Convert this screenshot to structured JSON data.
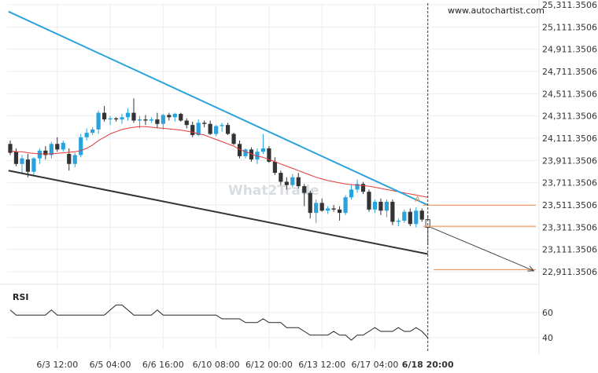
{
  "source_label": "www.autochartist.com",
  "watermark": "What2Trade",
  "chart_data": {
    "type": "candlestick",
    "title": "",
    "price_ticks": [
      "25,311.3506",
      "25,111.3506",
      "24,911.3506",
      "24,711.3506",
      "24,511.3506",
      "24,311.3506",
      "24,111.3506",
      "23,911.3506",
      "23,711.3506",
      "23,511.3506",
      "23,311.3506",
      "23,111.3506",
      "22,911.3506"
    ],
    "price_tick_values": [
      25311.3506,
      25111.3506,
      24911.3506,
      24711.3506,
      24511.3506,
      24311.3506,
      24111.3506,
      23911.3506,
      23711.3506,
      23511.3506,
      23311.3506,
      23111.3506,
      22911.3506
    ],
    "x_ticks": [
      "6/3 12:00",
      "6/5 04:00",
      "6/6 16:00",
      "6/10 08:00",
      "6/12 00:00",
      "6/13 12:00",
      "6/17 04:00",
      "6/18 20:00"
    ],
    "x_tick_positions": [
      8,
      17,
      26,
      35,
      44,
      53,
      62,
      71
    ],
    "candle_count": 72,
    "ohlc": [
      [
        24060,
        24090,
        23960,
        23980
      ],
      [
        23990,
        24020,
        23860,
        23880
      ],
      [
        23880,
        23960,
        23800,
        23930
      ],
      [
        23920,
        23970,
        23760,
        23810
      ],
      [
        23810,
        23940,
        23780,
        23930
      ],
      [
        23930,
        24020,
        23880,
        24000
      ],
      [
        24000,
        24040,
        23920,
        23960
      ],
      [
        23960,
        24080,
        23930,
        24060
      ],
      [
        24060,
        24120,
        23990,
        24010
      ],
      [
        24010,
        24090,
        23990,
        24070
      ],
      [
        23970,
        24020,
        23820,
        23880
      ],
      [
        23880,
        23980,
        23850,
        23960
      ],
      [
        23960,
        24150,
        23940,
        24120
      ],
      [
        24120,
        24200,
        24090,
        24160
      ],
      [
        24160,
        24210,
        24140,
        24190
      ],
      [
        24190,
        24360,
        24150,
        24340
      ],
      [
        24340,
        24400,
        24260,
        24280
      ],
      [
        24280,
        24310,
        24230,
        24290
      ],
      [
        24290,
        24300,
        24260,
        24280
      ],
      [
        24280,
        24330,
        24240,
        24300
      ],
      [
        24300,
        24380,
        24270,
        24340
      ],
      [
        24340,
        24470,
        24250,
        24270
      ],
      [
        24270,
        24310,
        24200,
        24280
      ],
      [
        24280,
        24320,
        24230,
        24270
      ],
      [
        24270,
        24300,
        24250,
        24280
      ],
      [
        24280,
        24340,
        24200,
        24240
      ],
      [
        24240,
        24330,
        24190,
        24320
      ],
      [
        24320,
        24340,
        24270,
        24300
      ],
      [
        24300,
        24340,
        24260,
        24330
      ],
      [
        24330,
        24340,
        24260,
        24270
      ],
      [
        24270,
        24290,
        24200,
        24230
      ],
      [
        24230,
        24260,
        24120,
        24140
      ],
      [
        24140,
        24280,
        24130,
        24250
      ],
      [
        24250,
        24270,
        24210,
        24240
      ],
      [
        24240,
        24270,
        24140,
        24150
      ],
      [
        24150,
        24230,
        24130,
        24220
      ],
      [
        24220,
        24250,
        24170,
        24230
      ],
      [
        24230,
        24250,
        24140,
        24150
      ],
      [
        24150,
        24160,
        24050,
        24060
      ],
      [
        24060,
        24090,
        23930,
        23950
      ],
      [
        23950,
        24020,
        23930,
        24010
      ],
      [
        24010,
        24030,
        23900,
        23920
      ],
      [
        23920,
        24020,
        23880,
        23990
      ],
      [
        23990,
        24150,
        23970,
        24020
      ],
      [
        24020,
        24040,
        23890,
        23900
      ],
      [
        23900,
        23940,
        23780,
        23800
      ],
      [
        23800,
        23820,
        23690,
        23720
      ],
      [
        23720,
        23760,
        23650,
        23690
      ],
      [
        23690,
        23790,
        23670,
        23760
      ],
      [
        23760,
        23800,
        23660,
        23680
      ],
      [
        23680,
        23700,
        23500,
        23620
      ],
      [
        23620,
        23640,
        23390,
        23440
      ],
      [
        23440,
        23560,
        23350,
        23530
      ],
      [
        23530,
        23570,
        23450,
        23460
      ],
      [
        23460,
        23500,
        23430,
        23480
      ],
      [
        23480,
        23510,
        23450,
        23470
      ],
      [
        23470,
        23500,
        23370,
        23440
      ],
      [
        23440,
        23600,
        23420,
        23580
      ],
      [
        23580,
        23690,
        23560,
        23650
      ],
      [
        23650,
        23740,
        23620,
        23700
      ],
      [
        23700,
        23720,
        23610,
        23630
      ],
      [
        23630,
        23650,
        23450,
        23470
      ],
      [
        23470,
        23560,
        23440,
        23540
      ],
      [
        23540,
        23570,
        23420,
        23460
      ],
      [
        23460,
        23560,
        23400,
        23540
      ],
      [
        23540,
        23560,
        23330,
        23360
      ],
      [
        23360,
        23390,
        23320,
        23370
      ],
      [
        23370,
        23470,
        23350,
        23450
      ],
      [
        23450,
        23480,
        23320,
        23340
      ],
      [
        23340,
        23490,
        23310,
        23460
      ],
      [
        23460,
        23480,
        23360,
        23380
      ],
      [
        23380,
        23410,
        23150,
        23310
      ]
    ],
    "ma_series": [
      24000,
      23990,
      23990,
      23980,
      23975,
      23970,
      23970,
      23970,
      23975,
      23980,
      23985,
      23990,
      24000,
      24020,
      24050,
      24090,
      24120,
      24150,
      24170,
      24190,
      24200,
      24210,
      24215,
      24215,
      24210,
      24205,
      24200,
      24195,
      24190,
      24185,
      24175,
      24165,
      24150,
      24140,
      24120,
      24100,
      24080,
      24060,
      24040,
      24010,
      23990,
      23970,
      23950,
      23940,
      23920,
      23900,
      23880,
      23860,
      23840,
      23820,
      23800,
      23780,
      23760,
      23745,
      23730,
      23720,
      23710,
      23700,
      23695,
      23690,
      23685,
      23680,
      23670,
      23660,
      23650,
      23640,
      23630,
      23620,
      23610,
      23600,
      23590,
      23580
    ],
    "trendlines": {
      "upper": {
        "from": [
          -0.3,
          25250
        ],
        "to": [
          71.0,
          23510
        ]
      },
      "lower": {
        "from": [
          -0.3,
          23820
        ],
        "to": [
          71.0,
          23070
        ]
      }
    },
    "projection": {
      "from": [
        71.5,
        23310
      ],
      "to": [
        89.0,
        22920
      ]
    },
    "levels": [
      23510,
      23320,
      22930
    ],
    "marker_label": "A",
    "marker_point": [
      69.2,
      23560
    ],
    "current_price": 23310,
    "rsi": {
      "label": "RSI",
      "ticks": [
        "60",
        "40"
      ],
      "tick_values": [
        60,
        40
      ],
      "values": [
        62,
        58,
        58,
        58,
        58,
        58,
        58,
        62,
        58,
        58,
        58,
        58,
        58,
        58,
        58,
        58,
        58,
        62,
        66,
        66,
        62,
        58,
        58,
        58,
        58,
        62,
        58,
        58,
        58,
        58,
        58,
        58,
        58,
        58,
        58,
        58,
        55,
        55,
        55,
        55,
        52,
        52,
        52,
        55,
        52,
        52,
        52,
        48,
        48,
        48,
        45,
        42,
        42,
        42,
        42,
        45,
        42,
        42,
        38,
        42,
        42,
        45,
        48,
        45,
        45,
        45,
        48,
        45,
        45,
        48,
        45,
        40
      ]
    }
  }
}
